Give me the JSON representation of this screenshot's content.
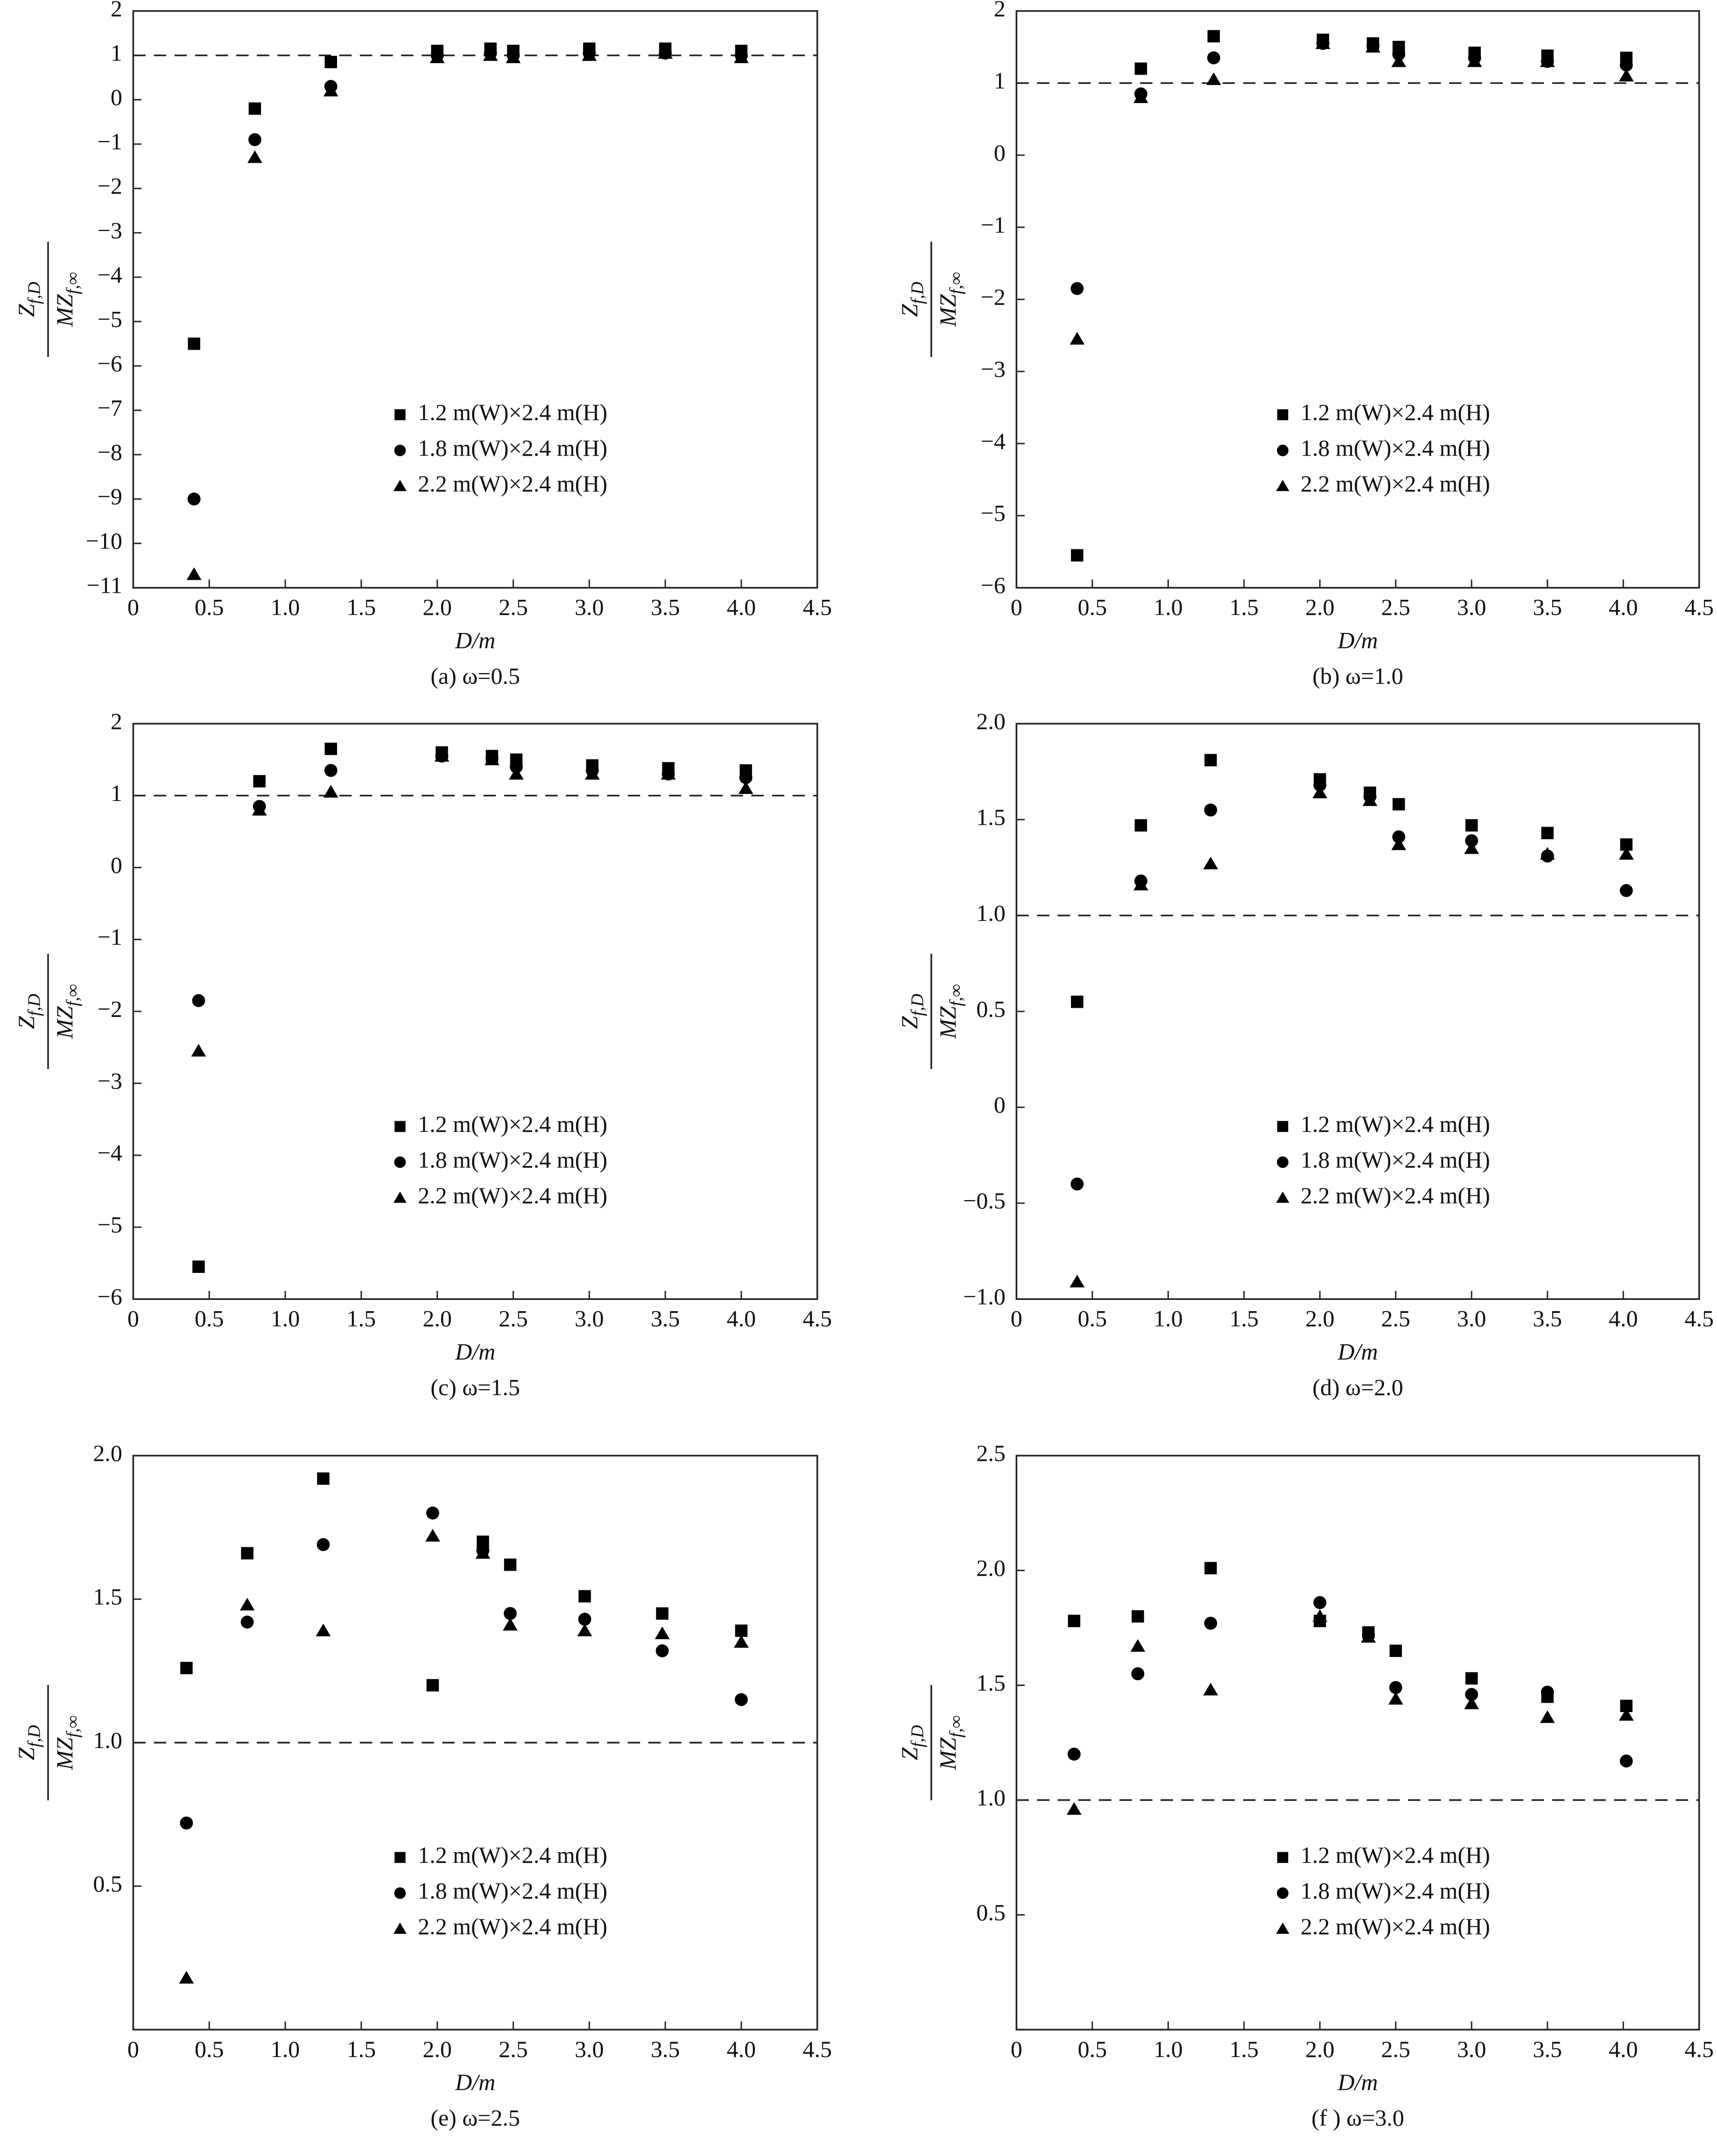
{
  "chart_data": [
    {
      "type": "scatter",
      "title": "(a) ω=0.5",
      "xlabel": "D/m",
      "ylabel": {
        "numerator": "Z",
        "numerator_sub": "f,D",
        "denominator": "MZ",
        "denominator_sub": "f,∞"
      },
      "x": [
        0.4,
        0.8,
        1.3,
        2.0,
        2.35,
        2.5,
        3.0,
        3.5,
        4.0
      ],
      "series": [
        {
          "name": "1.2 m(W)×2.4 m(H)",
          "marker": "square",
          "color": "#000000",
          "values": [
            -5.5,
            -0.2,
            0.85,
            1.1,
            1.15,
            1.1,
            1.15,
            1.15,
            1.1
          ]
        },
        {
          "name": "1.8 m(W)×2.4 m(H)",
          "marker": "circle",
          "color": "#000000",
          "values": [
            -9.0,
            -0.9,
            0.3,
            1.0,
            1.05,
            1.0,
            1.05,
            1.05,
            1.0
          ]
        },
        {
          "name": "2.2 m(W)×2.4 m(H)",
          "marker": "triangle",
          "color": "#000000",
          "values": [
            -10.7,
            -1.3,
            0.2,
            0.95,
            1.0,
            0.95,
            1.0,
            1.05,
            0.95
          ]
        }
      ],
      "hline": 1,
      "xlim": [
        0,
        4.5
      ],
      "ylim": [
        -11,
        2
      ],
      "xticks": [
        0,
        0.5,
        {
          "value": 1,
          "label": "1.0"
        },
        1.5,
        {
          "value": 2,
          "label": "2.0"
        },
        2.5,
        {
          "value": 3,
          "label": "3.0"
        },
        3.5,
        {
          "value": 4,
          "label": "4.0"
        },
        4.5
      ],
      "yticks": [
        {
          "value": -11,
          "label": "−11"
        },
        {
          "value": -10,
          "label": "−10"
        },
        {
          "value": -9,
          "label": "−9"
        },
        {
          "value": -8,
          "label": "−8"
        },
        {
          "value": -7,
          "label": "−7"
        },
        {
          "value": -6,
          "label": "−6"
        },
        {
          "value": -5,
          "label": "−5"
        },
        {
          "value": -4,
          "label": "−4"
        },
        {
          "value": -3,
          "label": "−3"
        },
        {
          "value": -2,
          "label": "−2"
        },
        {
          "value": -1,
          "label": "−1"
        },
        0,
        1,
        2
      ],
      "legend": "lower right"
    },
    {
      "type": "scatter",
      "title": "(b) ω=1.0",
      "xlabel": "D/m",
      "ylabel": {
        "numerator": "Z",
        "numerator_sub": "f,D",
        "denominator": "MZ",
        "denominator_sub": "f,∞"
      },
      "x": [
        0.4,
        0.82,
        1.3,
        2.02,
        2.35,
        2.52,
        3.02,
        3.5,
        4.02
      ],
      "series": [
        {
          "name": "1.2 m(W)×2.4 m(H)",
          "marker": "square",
          "color": "#000000",
          "values": [
            -5.55,
            1.2,
            1.65,
            1.6,
            1.55,
            1.5,
            1.42,
            1.38,
            1.35
          ]
        },
        {
          "name": "1.8 m(W)×2.4 m(H)",
          "marker": "circle",
          "color": "#000000",
          "values": [
            -1.85,
            0.85,
            1.35,
            1.55,
            1.52,
            1.4,
            1.35,
            1.3,
            1.25
          ]
        },
        {
          "name": "2.2 m(W)×2.4 m(H)",
          "marker": "triangle",
          "color": "#000000",
          "values": [
            -2.55,
            0.8,
            1.05,
            1.55,
            1.5,
            1.3,
            1.3,
            1.3,
            1.1
          ]
        }
      ],
      "hline": 1,
      "xlim": [
        0,
        4.5
      ],
      "ylim": [
        -6,
        2
      ],
      "xticks": [
        0,
        0.5,
        {
          "value": 1,
          "label": "1.0"
        },
        1.5,
        {
          "value": 2,
          "label": "2.0"
        },
        2.5,
        {
          "value": 3,
          "label": "3.0"
        },
        3.5,
        {
          "value": 4,
          "label": "4.0"
        },
        4.5
      ],
      "yticks": [
        {
          "value": -6,
          "label": "−6"
        },
        {
          "value": -5,
          "label": "−5"
        },
        {
          "value": -4,
          "label": "−4"
        },
        {
          "value": -3,
          "label": "−3"
        },
        {
          "value": -2,
          "label": "−2"
        },
        {
          "value": -1,
          "label": "−1"
        },
        0,
        1,
        2
      ],
      "legend": "lower right"
    },
    {
      "type": "scatter",
      "title": "(c) ω=1.5",
      "xlabel": "D/m",
      "ylabel": {
        "numerator": "Z",
        "numerator_sub": "f,D",
        "denominator": "MZ",
        "denominator_sub": "f,∞"
      },
      "x": [
        0.43,
        0.83,
        1.3,
        2.03,
        2.36,
        2.52,
        3.02,
        3.52,
        4.03
      ],
      "series": [
        {
          "name": "1.2 m(W)×2.4 m(H)",
          "marker": "square",
          "color": "#000000",
          "values": [
            -5.55,
            1.2,
            1.65,
            1.6,
            1.55,
            1.5,
            1.42,
            1.38,
            1.35
          ]
        },
        {
          "name": "1.8 m(W)×2.4 m(H)",
          "marker": "circle",
          "color": "#000000",
          "values": [
            -1.85,
            0.85,
            1.35,
            1.55,
            1.52,
            1.4,
            1.35,
            1.3,
            1.25
          ]
        },
        {
          "name": "2.2 m(W)×2.4 m(H)",
          "marker": "triangle",
          "color": "#000000",
          "values": [
            -2.55,
            0.8,
            1.05,
            1.55,
            1.5,
            1.3,
            1.3,
            1.3,
            1.1
          ]
        }
      ],
      "hline": 1,
      "xlim": [
        0,
        4.5
      ],
      "ylim": [
        -6,
        2
      ],
      "xticks": [
        0,
        0.5,
        {
          "value": 1,
          "label": "1.0"
        },
        1.5,
        {
          "value": 2,
          "label": "2.0"
        },
        2.5,
        {
          "value": 3,
          "label": "3.0"
        },
        3.5,
        {
          "value": 4,
          "label": "4.0"
        },
        4.5
      ],
      "yticks": [
        {
          "value": -6,
          "label": "−6"
        },
        {
          "value": -5,
          "label": "−5"
        },
        {
          "value": -4,
          "label": "−4"
        },
        {
          "value": -3,
          "label": "−3"
        },
        {
          "value": -2,
          "label": "−2"
        },
        {
          "value": -1,
          "label": "−1"
        },
        0,
        1,
        2
      ],
      "legend": "lower right"
    },
    {
      "type": "scatter",
      "title": "(d) ω=2.0",
      "xlabel": "D/m",
      "ylabel": {
        "numerator": "Z",
        "numerator_sub": "f,D",
        "denominator": "MZ",
        "denominator_sub": "f,∞"
      },
      "x": [
        0.4,
        0.82,
        1.28,
        2.0,
        2.33,
        2.52,
        3.0,
        3.5,
        4.02
      ],
      "series": [
        {
          "name": "1.2 m(W)×2.4 m(H)",
          "marker": "square",
          "color": "#000000",
          "values": [
            0.55,
            1.47,
            1.81,
            1.71,
            1.64,
            1.58,
            1.47,
            1.43,
            1.37
          ]
        },
        {
          "name": "1.8 m(W)×2.4 m(H)",
          "marker": "circle",
          "color": "#000000",
          "values": [
            -0.4,
            1.18,
            1.55,
            1.68,
            1.62,
            1.41,
            1.39,
            1.31,
            1.13
          ]
        },
        {
          "name": "2.2 m(W)×2.4 m(H)",
          "marker": "triangle",
          "color": "#000000",
          "values": [
            -0.91,
            1.16,
            1.27,
            1.64,
            1.6,
            1.37,
            1.35,
            1.32,
            1.32
          ]
        }
      ],
      "hline": 1,
      "xlim": [
        0,
        4.5
      ],
      "ylim": [
        -1,
        2
      ],
      "xticks": [
        0,
        0.5,
        {
          "value": 1,
          "label": "1.0"
        },
        1.5,
        {
          "value": 2,
          "label": "2.0"
        },
        2.5,
        {
          "value": 3,
          "label": "3.0"
        },
        3.5,
        {
          "value": 4,
          "label": "4.0"
        },
        4.5
      ],
      "yticks": [
        {
          "value": -1,
          "label": "−1.0"
        },
        {
          "value": -0.5,
          "label": "−0.5"
        },
        0,
        0.5,
        {
          "value": 1,
          "label": "1.0"
        },
        1.5,
        {
          "value": 2,
          "label": "2.0"
        }
      ],
      "legend": "lower right"
    },
    {
      "type": "scatter",
      "title": "(e) ω=2.5",
      "xlabel": "D/m",
      "ylabel": {
        "numerator": "Z",
        "numerator_sub": "f,D",
        "denominator": "MZ",
        "denominator_sub": "f,∞"
      },
      "x": [
        0.35,
        0.75,
        1.25,
        1.97,
        2.3,
        2.48,
        2.97,
        3.48,
        4.0
      ],
      "series": [
        {
          "name": "1.2 m(W)×2.4 m(H)",
          "marker": "square",
          "color": "#000000",
          "values": [
            1.26,
            1.66,
            1.92,
            1.2,
            1.7,
            1.62,
            1.51,
            1.45,
            1.39
          ]
        },
        {
          "name": "1.8 m(W)×2.4 m(H)",
          "marker": "circle",
          "color": "#000000",
          "values": [
            0.72,
            1.42,
            1.69,
            1.8,
            1.67,
            1.45,
            1.43,
            1.32,
            1.15
          ]
        },
        {
          "name": "2.2 m(W)×2.4 m(H)",
          "marker": "triangle",
          "color": "#000000",
          "values": [
            0.18,
            1.48,
            1.39,
            1.72,
            1.66,
            1.41,
            1.39,
            1.38,
            1.35
          ]
        }
      ],
      "hline": 1,
      "xlim": [
        0,
        4.5
      ],
      "ylim": [
        0,
        2
      ],
      "xticks": [
        0,
        0.5,
        {
          "value": 1,
          "label": "1.0"
        },
        1.5,
        {
          "value": 2,
          "label": "2.0"
        },
        2.5,
        {
          "value": 3,
          "label": "3.0"
        },
        3.5,
        {
          "value": 4,
          "label": "4.0"
        },
        4.5
      ],
      "yticks": [
        0.5,
        {
          "value": 1,
          "label": "1.0"
        },
        1.5,
        {
          "value": 2,
          "label": "2.0"
        }
      ],
      "legend": "lower right"
    },
    {
      "type": "scatter",
      "title": "(f ) ω=3.0",
      "xlabel": "D/m",
      "ylabel": {
        "numerator": "Z",
        "numerator_sub": "f,D",
        "denominator": "MZ",
        "denominator_sub": "f,∞"
      },
      "x": [
        0.38,
        0.8,
        1.28,
        2.0,
        2.32,
        2.5,
        3.0,
        3.5,
        4.02
      ],
      "series": [
        {
          "name": "1.2 m(W)×2.4 m(H)",
          "marker": "square",
          "color": "#000000",
          "values": [
            1.78,
            1.8,
            2.01,
            1.78,
            1.73,
            1.65,
            1.53,
            1.45,
            1.41
          ]
        },
        {
          "name": "1.8 m(W)×2.4 m(H)",
          "marker": "circle",
          "color": "#000000",
          "values": [
            1.2,
            1.55,
            1.77,
            1.86,
            1.72,
            1.49,
            1.46,
            1.47,
            1.17
          ]
        },
        {
          "name": "2.2 m(W)×2.4 m(H)",
          "marker": "triangle",
          "color": "#000000",
          "values": [
            0.96,
            1.67,
            1.48,
            1.8,
            1.71,
            1.44,
            1.42,
            1.36,
            1.37
          ]
        }
      ],
      "hline": 1,
      "xlim": [
        0,
        4.5
      ],
      "ylim": [
        0,
        2.5
      ],
      "xticks": [
        0,
        0.5,
        {
          "value": 1,
          "label": "1.0"
        },
        1.5,
        {
          "value": 2,
          "label": "2.0"
        },
        2.5,
        {
          "value": 3,
          "label": "3.0"
        },
        3.5,
        {
          "value": 4,
          "label": "4.0"
        },
        4.5
      ],
      "yticks": [
        0.5,
        {
          "value": 1,
          "label": "1.0"
        },
        1.5,
        {
          "value": 2,
          "label": "2.0"
        },
        2.5
      ],
      "legend": "lower right"
    }
  ]
}
